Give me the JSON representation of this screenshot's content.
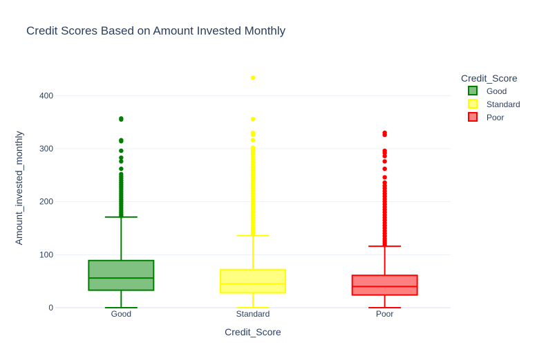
{
  "chart_data": {
    "type": "box",
    "title": "Credit Scores Based on Amount Invested Monthly",
    "xlabel": "Credit_Score",
    "ylabel": "Amount_invested_monthly",
    "categories": [
      "Good",
      "Standard",
      "Poor"
    ],
    "ylim": [
      0,
      450
    ],
    "yticks": [
      0,
      100,
      200,
      300,
      400
    ],
    "grid": true,
    "legend": {
      "title": "Credit_Score",
      "placement": "top-right"
    },
    "series": [
      {
        "name": "Good",
        "color": "#008000",
        "fill": "#80c080",
        "min": 0,
        "q1": 33,
        "median": 56,
        "q3": 89,
        "upper_fence": 171,
        "outliers": [
          173,
          176,
          180,
          184,
          188,
          192,
          196,
          200,
          204,
          208,
          212,
          216,
          220,
          224,
          228,
          232,
          236,
          240,
          244,
          248,
          252,
          262,
          276,
          283,
          296,
          314,
          316,
          355,
          357
        ]
      },
      {
        "name": "Standard",
        "color": "#ffff00",
        "fill": "#ffff80",
        "min": 0,
        "q1": 28,
        "median": 45,
        "q3": 72,
        "upper_fence": 136,
        "outliers": [
          138,
          142,
          146,
          150,
          155,
          160,
          165,
          170,
          175,
          180,
          185,
          190,
          195,
          200,
          205,
          210,
          215,
          220,
          225,
          230,
          235,
          240,
          245,
          250,
          255,
          260,
          265,
          270,
          275,
          280,
          285,
          290,
          295,
          298,
          302,
          316,
          326,
          330,
          356,
          434
        ]
      },
      {
        "name": "Poor",
        "color": "#ff0000",
        "fill": "#ff8080",
        "min": 0,
        "q1": 24,
        "median": 40,
        "q3": 61,
        "upper_fence": 116,
        "outliers": [
          118,
          122,
          126,
          130,
          135,
          140,
          145,
          150,
          155,
          160,
          165,
          170,
          175,
          180,
          185,
          190,
          195,
          200,
          205,
          210,
          215,
          220,
          225,
          230,
          236,
          246,
          262,
          276,
          286,
          292,
          296,
          326,
          330
        ]
      }
    ]
  }
}
